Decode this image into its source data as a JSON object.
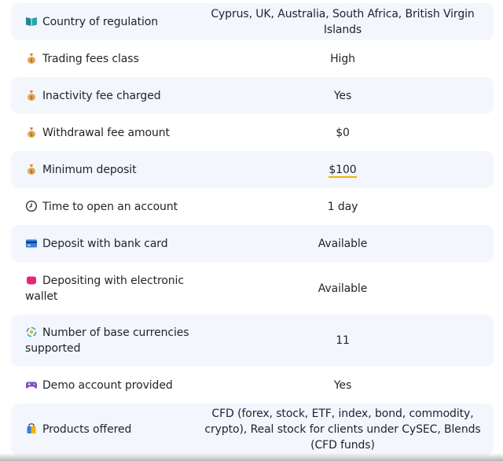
{
  "colors": {
    "row_shaded": "#f3f6fd",
    "underline_accent": "#f2b400",
    "text": "#1f2329"
  },
  "rows": [
    {
      "label": "Country of regulation",
      "value": "Cyprus, UK, Australia, South Africa, British Virgin Islands",
      "icon": "book-icon"
    },
    {
      "label": "Trading fees class",
      "value": "High",
      "icon": "money-bag-icon"
    },
    {
      "label": "Inactivity fee charged",
      "value": "Yes",
      "icon": "money-bag-icon"
    },
    {
      "label": "Withdrawal fee amount",
      "value": "$0",
      "icon": "money-bag-icon"
    },
    {
      "label": "Minimum deposit",
      "value": "$100",
      "icon": "money-bag-icon"
    },
    {
      "label": "Time to open an account",
      "value": "1 day",
      "icon": "clock-icon"
    },
    {
      "label": "Deposit with bank card",
      "value": "Available",
      "icon": "credit-card-icon"
    },
    {
      "label": "Depositing with electronic wallet",
      "value": "Available",
      "icon": "wallet-icon"
    },
    {
      "label": "Number of base currencies supported",
      "value": "11",
      "icon": "currency-exchange-icon"
    },
    {
      "label": "Demo account provided",
      "value": "Yes",
      "icon": "gamepad-icon"
    },
    {
      "label": "Products offered",
      "value": "CFD (forex, stock, ETF, index, bond, commodity, crypto), Real stock for clients under CySEC, Blends (CFD funds)",
      "icon": "shopping-bag-icon"
    }
  ]
}
